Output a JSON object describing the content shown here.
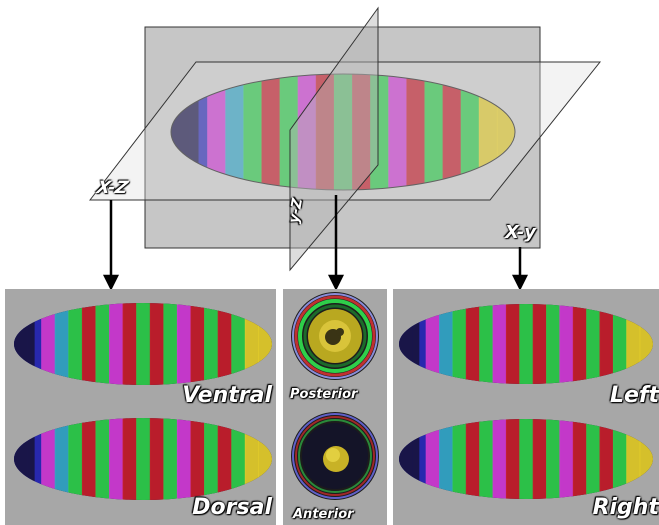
{
  "planes": {
    "xz": "X-Z",
    "yz": "y-Z",
    "xy": "X-y"
  },
  "views": {
    "ventral": "Ventral",
    "dorsal": "Dorsal",
    "posterior": "Posterior",
    "anterior": "Anterior",
    "left": "Left",
    "right": "Right"
  },
  "colors": {
    "panel_bg": "#a7a7a7",
    "stripe_colors": [
      "#2a2ab8",
      "#d23cd6",
      "#2fcf4a",
      "#c81e2a",
      "#e6cf2a",
      "#34a8c8"
    ],
    "label_text": "#ffffff"
  }
}
